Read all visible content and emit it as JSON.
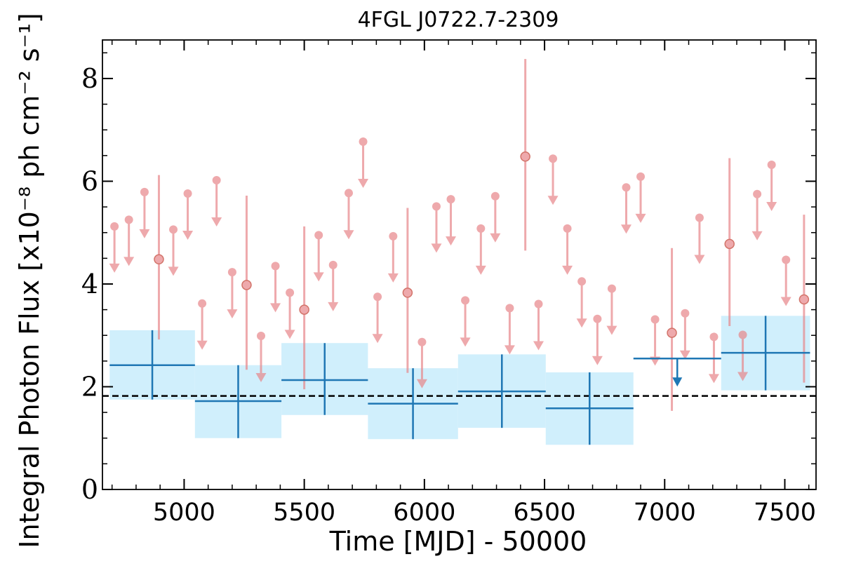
{
  "chart_data": {
    "type": "scatter",
    "title": "4FGL J0722.7-2309",
    "xlabel": "Time [MJD] - 50000",
    "ylabel": "Integral Photon Flux [x10⁻⁸ ph cm⁻² s⁻¹]",
    "xlim": [
      4660,
      7630
    ],
    "ylim": [
      0,
      8.75
    ],
    "x_ticks": [
      5000,
      5500,
      6000,
      6500,
      7000,
      7500
    ],
    "x_tick_labels": [
      "5000",
      "5500",
      "6000",
      "6500",
      "7000",
      "7500"
    ],
    "y_ticks": [
      0,
      2,
      4,
      6,
      8
    ],
    "y_tick_labels": [
      "0",
      "2",
      "4",
      "6",
      "8"
    ],
    "grid": false,
    "reference_line": {
      "y": 1.82,
      "style": "dashed",
      "color": "#000000"
    },
    "colors": {
      "short_bin": "#e8868a",
      "long_bin": "#1f77b4",
      "band_fill": "#d0effc"
    },
    "series": [
      {
        "kind": "short-bin-detections",
        "points": [
          {
            "x": 4895,
            "y": 4.48,
            "y_low": 2.92,
            "y_high": 6.12
          },
          {
            "x": 5260,
            "y": 3.98,
            "y_low": 2.33,
            "y_high": 5.72
          },
          {
            "x": 5500,
            "y": 3.5,
            "y_low": 1.95,
            "y_high": 5.12
          },
          {
            "x": 5930,
            "y": 3.83,
            "y_low": 2.27,
            "y_high": 5.48
          },
          {
            "x": 6420,
            "y": 6.48,
            "y_low": 4.65,
            "y_high": 8.38
          },
          {
            "x": 7030,
            "y": 3.05,
            "y_low": 1.53,
            "y_high": 4.7
          },
          {
            "x": 7270,
            "y": 4.78,
            "y_low": 3.18,
            "y_high": 6.45
          },
          {
            "x": 7580,
            "y": 3.7,
            "y_low": 2.08,
            "y_high": 5.35
          }
        ]
      },
      {
        "kind": "short-bin-upper-limits",
        "points": [
          {
            "x": 4710,
            "y": 5.12
          },
          {
            "x": 4770,
            "y": 5.25
          },
          {
            "x": 4835,
            "y": 5.79
          },
          {
            "x": 4955,
            "y": 5.06
          },
          {
            "x": 5015,
            "y": 5.76
          },
          {
            "x": 5075,
            "y": 3.62
          },
          {
            "x": 5135,
            "y": 6.02
          },
          {
            "x": 5200,
            "y": 4.23
          },
          {
            "x": 5320,
            "y": 2.99
          },
          {
            "x": 5380,
            "y": 4.35
          },
          {
            "x": 5440,
            "y": 3.83
          },
          {
            "x": 5560,
            "y": 4.95
          },
          {
            "x": 5620,
            "y": 4.37
          },
          {
            "x": 5685,
            "y": 5.77
          },
          {
            "x": 5745,
            "y": 6.77
          },
          {
            "x": 5805,
            "y": 3.75
          },
          {
            "x": 5870,
            "y": 4.93
          },
          {
            "x": 5990,
            "y": 2.87
          },
          {
            "x": 6050,
            "y": 5.51
          },
          {
            "x": 6110,
            "y": 5.65
          },
          {
            "x": 6170,
            "y": 3.68
          },
          {
            "x": 6235,
            "y": 5.08
          },
          {
            "x": 6295,
            "y": 5.71
          },
          {
            "x": 6355,
            "y": 3.53
          },
          {
            "x": 6475,
            "y": 3.61
          },
          {
            "x": 6535,
            "y": 6.44
          },
          {
            "x": 6595,
            "y": 5.08
          },
          {
            "x": 6655,
            "y": 4.05
          },
          {
            "x": 6720,
            "y": 3.32
          },
          {
            "x": 6780,
            "y": 3.91
          },
          {
            "x": 6840,
            "y": 5.88
          },
          {
            "x": 6900,
            "y": 6.09
          },
          {
            "x": 6960,
            "y": 3.31
          },
          {
            "x": 7085,
            "y": 3.43
          },
          {
            "x": 7145,
            "y": 5.29
          },
          {
            "x": 7205,
            "y": 2.97
          },
          {
            "x": 7325,
            "y": 3.01
          },
          {
            "x": 7385,
            "y": 5.75
          },
          {
            "x": 7445,
            "y": 6.32
          },
          {
            "x": 7505,
            "y": 4.47
          }
        ]
      },
      {
        "kind": "long-bin-detections",
        "points": [
          {
            "x_start": 4690,
            "x_end": 5045,
            "y": 2.42,
            "y_low": 1.75,
            "y_high": 3.1
          },
          {
            "x_start": 5045,
            "x_end": 5405,
            "y": 1.72,
            "y_low": 1.0,
            "y_high": 2.42
          },
          {
            "x_start": 5405,
            "x_end": 5765,
            "y": 2.13,
            "y_low": 1.45,
            "y_high": 2.85
          },
          {
            "x_start": 5765,
            "x_end": 6140,
            "y": 1.67,
            "y_low": 0.98,
            "y_high": 2.36
          },
          {
            "x_start": 6140,
            "x_end": 6505,
            "y": 1.91,
            "y_low": 1.2,
            "y_high": 2.63
          },
          {
            "x_start": 6505,
            "x_end": 6870,
            "y": 1.58,
            "y_low": 0.87,
            "y_high": 2.28
          },
          {
            "x_start": 7235,
            "x_end": 7605,
            "y": 2.66,
            "y_low": 1.93,
            "y_high": 3.38
          }
        ]
      },
      {
        "kind": "long-bin-upper-limits",
        "points": [
          {
            "x_start": 6870,
            "x_end": 7235,
            "y": 2.55
          }
        ]
      }
    ]
  }
}
